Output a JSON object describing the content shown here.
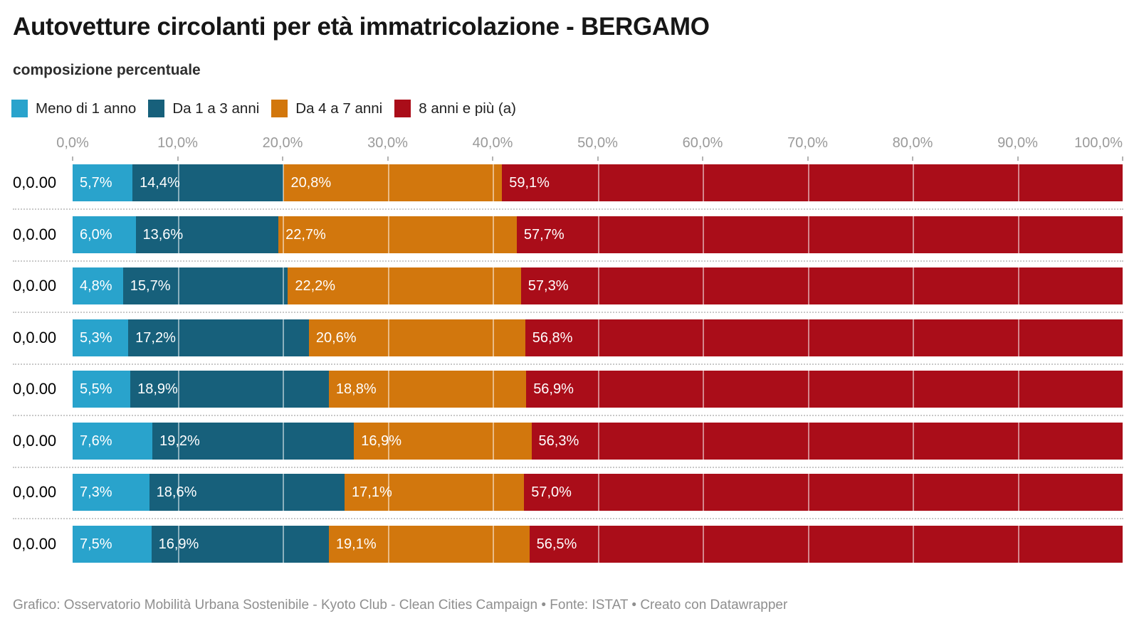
{
  "header": {
    "title": "Autovetture circolanti per età immatricolazione - BERGAMO",
    "subtitle": "composizione percentuale"
  },
  "legend": {
    "items": [
      {
        "label": "Meno di 1 anno",
        "color": "#29A3CC"
      },
      {
        "label": "Da 1 a 3 anni",
        "color": "#17607B"
      },
      {
        "label": "Da 4 a 7 anni",
        "color": "#D2770D"
      },
      {
        "label": "8 anni e più (a)",
        "color": "#AA0D19"
      }
    ]
  },
  "chart_data": {
    "type": "bar",
    "stacked": true,
    "orientation": "horizontal",
    "unit": "%",
    "grid": true,
    "xlim": [
      0,
      100
    ],
    "x_ticks": [
      "0,0%",
      "10,0%",
      "20,0%",
      "30,0%",
      "40,0%",
      "50,0%",
      "60,0%",
      "70,0%",
      "80,0%",
      "90,0%",
      "100,0%"
    ],
    "categories": [
      "0,0.00",
      "0,0.00",
      "0,0.00",
      "0,0.00",
      "0,0.00",
      "0,0.00",
      "0,0.00",
      "0,0.00"
    ],
    "series": [
      {
        "name": "Meno di 1 anno",
        "color": "#29A3CC",
        "values": [
          5.7,
          6.0,
          4.8,
          5.3,
          5.5,
          7.6,
          7.3,
          7.5
        ],
        "labels": [
          "5,7%",
          "6,0%",
          "4,8%",
          "5,3%",
          "5,5%",
          "7,6%",
          "7,3%",
          "7,5%"
        ]
      },
      {
        "name": "Da 1 a 3 anni",
        "color": "#17607B",
        "values": [
          14.4,
          13.6,
          15.7,
          17.2,
          18.9,
          19.2,
          18.6,
          16.9
        ],
        "labels": [
          "14,4%",
          "13,6%",
          "15,7%",
          "17,2%",
          "18,9%",
          "19,2%",
          "18,6%",
          "16,9%"
        ]
      },
      {
        "name": "Da 4 a 7 anni",
        "color": "#D2770D",
        "values": [
          20.8,
          22.7,
          22.2,
          20.6,
          18.8,
          16.9,
          17.1,
          19.1
        ],
        "labels": [
          "20,8%",
          "22,7%",
          "22,2%",
          "20,6%",
          "18,8%",
          "16,9%",
          "17,1%",
          "19,1%"
        ]
      },
      {
        "name": "8 anni e più (a)",
        "color": "#AA0D19",
        "values": [
          59.1,
          57.7,
          57.3,
          56.8,
          56.9,
          56.3,
          57.0,
          56.5
        ],
        "labels": [
          "59,1%",
          "57,7%",
          "57,3%",
          "56,8%",
          "56,9%",
          "56,3%",
          "57,0%",
          "56,5%"
        ]
      }
    ]
  },
  "footer": {
    "credit": "Grafico: Osservatorio Mobilità Urbana Sostenibile - Kyoto Club - Clean Cities Campaign • Fonte: ISTAT • Creato con Datawrapper"
  }
}
